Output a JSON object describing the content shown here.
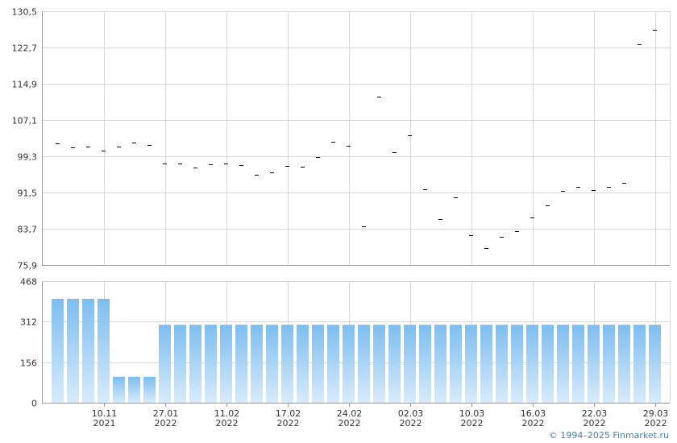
{
  "copyright": "© 1994–2025 Finmarket.ru",
  "colors": {
    "grid": "#d8d8d8",
    "axis": "#999999",
    "price_mark": "#000000",
    "bar_top": "#7dbdf0",
    "bar_bottom": "#d9ebfa",
    "copyright": "#4a7fb5"
  },
  "chart_data": [
    {
      "type": "scatter",
      "marker": "dash",
      "ylim": [
        75.9,
        130.5
      ],
      "y_ticks": [
        "75,9",
        "83,7",
        "91,5",
        "99,3",
        "107,1",
        "114,9",
        "122,7",
        "130,5"
      ],
      "grid": true,
      "values": [
        102.0,
        101.2,
        101.3,
        100.5,
        101.3,
        102.3,
        101.8,
        97.8,
        97.8,
        96.9,
        97.6,
        97.8,
        97.4,
        95.3,
        95.8,
        97.3,
        97.1,
        99.1,
        102.5,
        101.5,
        84.2,
        112.2,
        100.2,
        103.8,
        92.2,
        85.8,
        90.4,
        82.4,
        79.5,
        82.0,
        83.1,
        86.2,
        88.8,
        91.9,
        92.8,
        92.1,
        92.8,
        93.6,
        123.4,
        126.6
      ]
    },
    {
      "type": "bar",
      "ylim": [
        0,
        468
      ],
      "y_ticks": [
        "0",
        "156",
        "312",
        "468"
      ],
      "grid": true,
      "values": [
        400,
        400,
        400,
        400,
        100,
        100,
        100,
        300,
        300,
        300,
        300,
        300,
        300,
        300,
        300,
        300,
        300,
        300,
        300,
        300,
        300,
        300,
        300,
        300,
        300,
        300,
        300,
        300,
        300,
        300,
        300,
        300,
        300,
        300,
        300,
        300,
        300,
        300,
        300,
        300
      ]
    }
  ],
  "x_axis": {
    "labels": [
      {
        "date": "10.11",
        "year": "2021",
        "slot": 3
      },
      {
        "date": "27.01",
        "year": "2022",
        "slot": 7
      },
      {
        "date": "11.02",
        "year": "2022",
        "slot": 11
      },
      {
        "date": "17.02",
        "year": "2022",
        "slot": 15
      },
      {
        "date": "24.02",
        "year": "2022",
        "slot": 19
      },
      {
        "date": "02.03",
        "year": "2022",
        "slot": 23
      },
      {
        "date": "10.03",
        "year": "2022",
        "slot": 27
      },
      {
        "date": "16.03",
        "year": "2022",
        "slot": 31
      },
      {
        "date": "22.03",
        "year": "2022",
        "slot": 35
      },
      {
        "date": "29.03",
        "year": "2022",
        "slot": 39
      }
    ]
  }
}
